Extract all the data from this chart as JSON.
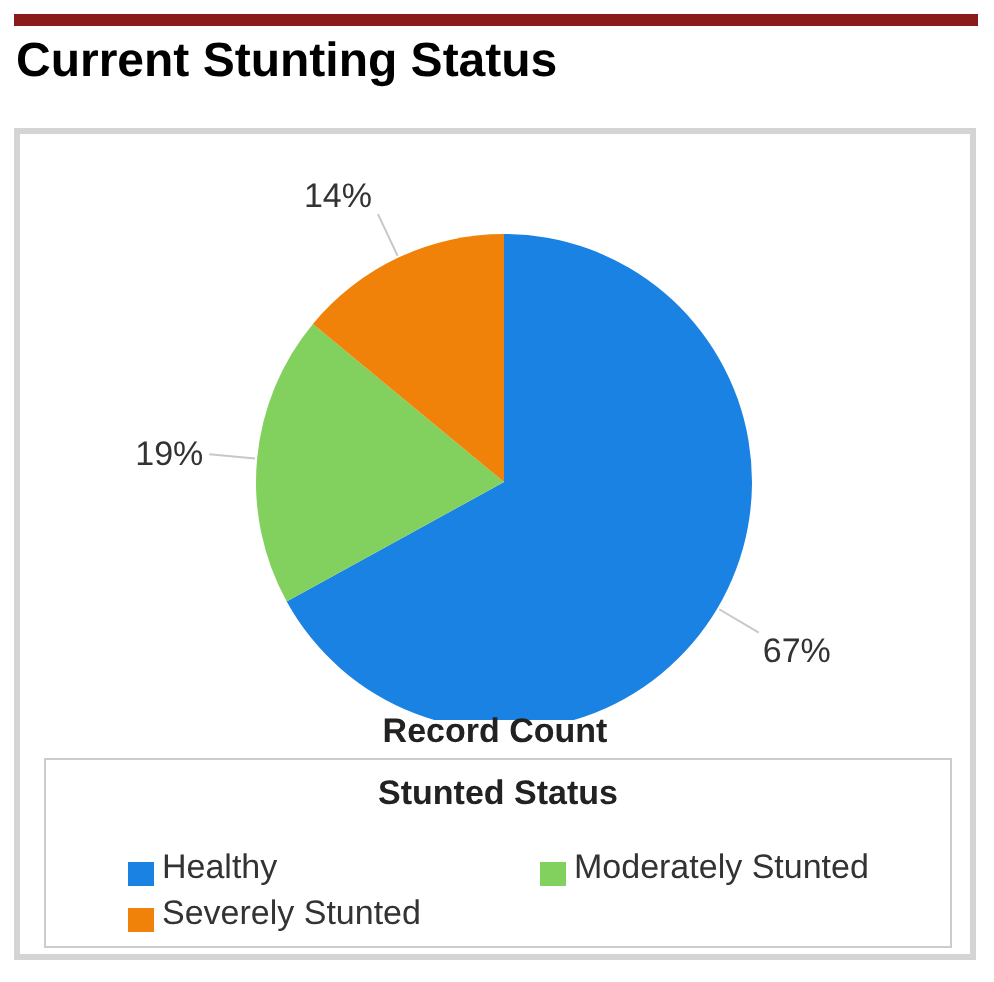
{
  "chart_data": {
    "type": "pie",
    "title": "Current Stunting Status",
    "xlabel": "Record Count",
    "legend_title": "Stunted Status",
    "categories": [
      "Healthy",
      "Moderately Stunted",
      "Severely Stunted"
    ],
    "values": [
      67,
      19,
      14
    ],
    "colors": [
      "#1a82e2",
      "#82d05e",
      "#f0820a"
    ],
    "value_labels": [
      "67%",
      "19%",
      "14%"
    ],
    "legend": "bottom"
  }
}
